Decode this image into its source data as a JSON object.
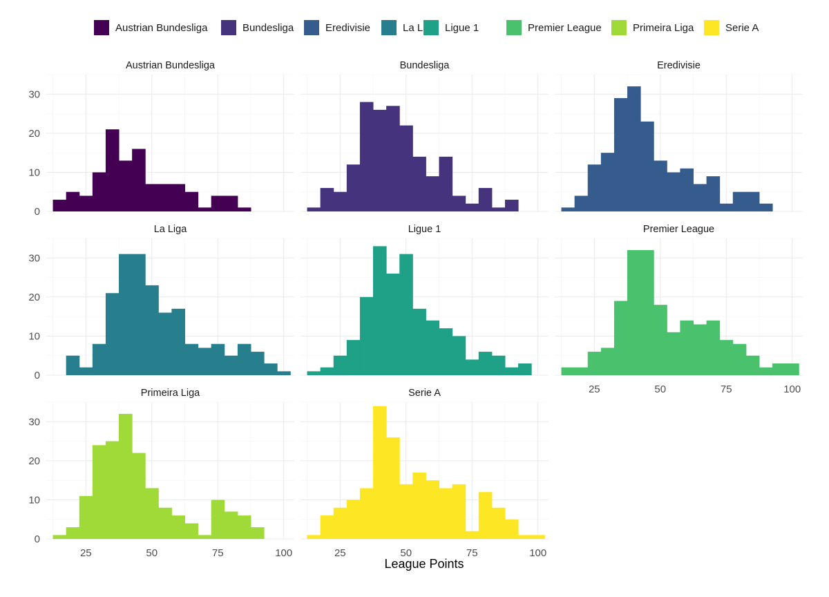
{
  "chart_data": {
    "type": "bar",
    "subtype": "faceted histogram",
    "xlabel": "League Points",
    "ylabel": "",
    "xlim": [
      10,
      104
    ],
    "ylim": [
      0,
      35
    ],
    "x_ticks": [
      25,
      50,
      75,
      100
    ],
    "y_ticks": [
      0,
      10,
      20,
      30
    ],
    "bin_width": 5,
    "grid": true,
    "legend_position": "top",
    "legend": [
      {
        "name": "Austrian Bundesliga",
        "color": "#440154"
      },
      {
        "name": "Bundesliga",
        "color": "#46337e"
      },
      {
        "name": "Eredivisie",
        "color": "#365c8d"
      },
      {
        "name": "La Liga",
        "color": "#277f8e"
      },
      {
        "name": "Ligue 1",
        "color": "#1fa187"
      },
      {
        "name": "Premier League",
        "color": "#4ac16d"
      },
      {
        "name": "Primeira Liga",
        "color": "#a0da39"
      },
      {
        "name": "Serie A",
        "color": "#fde725"
      }
    ],
    "series": [
      {
        "name": "Austrian Bundesliga",
        "color": "#440154",
        "bin_centers": [
          15,
          20,
          25,
          30,
          35,
          40,
          45,
          50,
          55,
          60,
          65,
          70,
          75,
          80,
          85
        ],
        "counts": [
          3,
          5,
          4,
          10,
          21,
          13,
          16,
          7,
          7,
          7,
          5,
          1,
          4,
          4,
          1
        ]
      },
      {
        "name": "Bundesliga",
        "color": "#46337e",
        "bin_centers": [
          15,
          20,
          25,
          30,
          35,
          40,
          45,
          50,
          55,
          60,
          65,
          70,
          75,
          80,
          85,
          90
        ],
        "counts": [
          1,
          6,
          5,
          12,
          28,
          26,
          27,
          22,
          14,
          9,
          14,
          4,
          2,
          6,
          1,
          3
        ]
      },
      {
        "name": "Eredivisie",
        "color": "#365c8d",
        "bin_centers": [
          15,
          20,
          25,
          30,
          35,
          40,
          45,
          50,
          55,
          60,
          65,
          70,
          75,
          80,
          85,
          90
        ],
        "counts": [
          1,
          4,
          12,
          15,
          29,
          32,
          23,
          13,
          10,
          11,
          7,
          9,
          2,
          5,
          5,
          2
        ]
      },
      {
        "name": "La Liga",
        "color": "#277f8e",
        "bin_centers": [
          20,
          25,
          30,
          35,
          40,
          45,
          50,
          55,
          60,
          65,
          70,
          75,
          80,
          85,
          90,
          95,
          100
        ],
        "counts": [
          5,
          2,
          8,
          21,
          31,
          31,
          23,
          16,
          17,
          8,
          7,
          8,
          5,
          8,
          6,
          3,
          1
        ]
      },
      {
        "name": "Ligue 1",
        "color": "#1fa187",
        "bin_centers": [
          15,
          20,
          25,
          30,
          35,
          40,
          45,
          50,
          55,
          60,
          65,
          70,
          75,
          80,
          85,
          90,
          95
        ],
        "counts": [
          1,
          2,
          5,
          9,
          20,
          33,
          26,
          31,
          17,
          14,
          12,
          10,
          4,
          6,
          5,
          2,
          3
        ]
      },
      {
        "name": "Premier League",
        "color": "#4ac16d",
        "bin_centers": [
          15,
          20,
          25,
          30,
          35,
          40,
          45,
          50,
          55,
          60,
          65,
          70,
          75,
          80,
          85,
          90,
          95,
          100
        ],
        "counts": [
          2,
          2,
          6,
          7,
          19,
          32,
          32,
          18,
          11,
          14,
          13,
          14,
          9,
          8,
          5,
          2,
          3,
          3
        ]
      },
      {
        "name": "Primeira Liga",
        "color": "#a0da39",
        "bin_centers": [
          15,
          20,
          25,
          30,
          35,
          40,
          45,
          50,
          55,
          60,
          65,
          70,
          75,
          80,
          85,
          90
        ],
        "counts": [
          1,
          3,
          11,
          24,
          25,
          32,
          22,
          13,
          8,
          6,
          4,
          1,
          10,
          7,
          6,
          3
        ]
      },
      {
        "name": "Serie A",
        "color": "#fde725",
        "bin_centers": [
          15,
          20,
          25,
          30,
          35,
          40,
          45,
          50,
          55,
          60,
          65,
          70,
          75,
          80,
          85,
          90,
          95,
          100
        ],
        "counts": [
          1,
          6,
          8,
          10,
          13,
          34,
          26,
          14,
          17,
          15,
          13,
          14,
          2,
          12,
          8,
          5,
          1,
          1
        ]
      }
    ]
  }
}
